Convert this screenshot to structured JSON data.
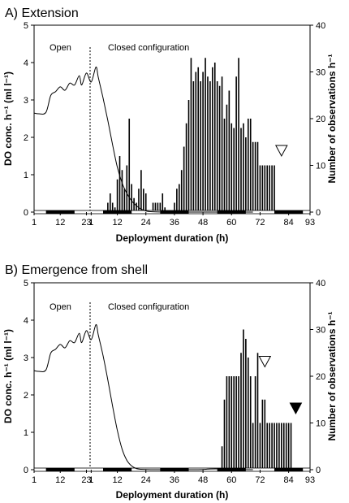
{
  "chart_data": [
    {
      "type": "bar",
      "panel": "A",
      "title": "Extension",
      "xlabel": "Deployment duration (h)",
      "ylabel_left": "DO conc. h⁻¹ (ml l⁻¹)",
      "ylabel_right": "Number of observations h⁻¹",
      "x_ticks": [
        "1",
        "12",
        "23",
        "1",
        "12",
        "24",
        "36",
        "48",
        "60",
        "72",
        "84",
        "93"
      ],
      "ylim_left": [
        0,
        5
      ],
      "y_ticks_left": [
        "0",
        "1",
        "2",
        "3",
        "4",
        "5"
      ],
      "ylim_right": [
        0,
        40
      ],
      "y_ticks_right": [
        "0",
        "10",
        "20",
        "30",
        "40"
      ],
      "phase_labels": [
        "Open",
        "Closed configuration"
      ],
      "do_curve": [
        [
          1,
          2.65
        ],
        [
          3,
          2.63
        ],
        [
          6,
          2.67
        ],
        [
          8,
          3.12
        ],
        [
          10,
          3.22
        ],
        [
          12,
          3.35
        ],
        [
          14,
          3.26
        ],
        [
          16,
          3.45
        ],
        [
          18,
          3.4
        ],
        [
          20,
          3.65
        ],
        [
          21,
          3.4
        ],
        [
          23,
          3.72
        ],
        [
          25,
          3.48
        ],
        [
          27,
          3.88
        ],
        [
          28,
          3.6
        ],
        [
          30,
          3.05
        ],
        [
          32,
          2.45
        ],
        [
          34,
          1.8
        ],
        [
          36,
          1.2
        ],
        [
          38,
          0.78
        ],
        [
          40,
          0.5
        ],
        [
          42,
          0.3
        ],
        [
          44,
          0.17
        ],
        [
          46,
          0.08
        ],
        [
          48,
          0.03
        ],
        [
          50,
          0.01
        ],
        [
          55,
          0
        ],
        [
          60,
          0
        ],
        [
          93,
          0
        ]
      ],
      "bars": [
        [
          32,
          2
        ],
        [
          33,
          4
        ],
        [
          34,
          2
        ],
        [
          35,
          1
        ],
        [
          36,
          7
        ],
        [
          37,
          12
        ],
        [
          38,
          9
        ],
        [
          39,
          5
        ],
        [
          40,
          10
        ],
        [
          41,
          20
        ],
        [
          42,
          6
        ],
        [
          43,
          3
        ],
        [
          44,
          2
        ],
        [
          45,
          5
        ],
        [
          46,
          9
        ],
        [
          47,
          5
        ],
        [
          48,
          4
        ],
        [
          49,
          0
        ],
        [
          50,
          0
        ],
        [
          51,
          2
        ],
        [
          52,
          2
        ],
        [
          53,
          2
        ],
        [
          54,
          2
        ],
        [
          55,
          4
        ],
        [
          56,
          1
        ],
        [
          57,
          0
        ],
        [
          58,
          0
        ],
        [
          59,
          0
        ],
        [
          60,
          2
        ],
        [
          61,
          5
        ],
        [
          62,
          6
        ],
        [
          63,
          9
        ],
        [
          64,
          14
        ],
        [
          65,
          19
        ],
        [
          66,
          24
        ],
        [
          67,
          33
        ],
        [
          68,
          28
        ],
        [
          69,
          30
        ],
        [
          70,
          31
        ],
        [
          71,
          28
        ],
        [
          72,
          30
        ],
        [
          73,
          33
        ],
        [
          74,
          29
        ],
        [
          75,
          28
        ],
        [
          76,
          31
        ],
        [
          77,
          32
        ],
        [
          78,
          28
        ],
        [
          79,
          27
        ],
        [
          80,
          29
        ],
        [
          81,
          20
        ],
        [
          82,
          23
        ],
        [
          83,
          26
        ],
        [
          84,
          19
        ],
        [
          85,
          18
        ],
        [
          86,
          29
        ],
        [
          87,
          33
        ],
        [
          88,
          18
        ],
        [
          89,
          19
        ],
        [
          90,
          16
        ],
        [
          91,
          20
        ],
        [
          92,
          20
        ],
        [
          93,
          15
        ],
        [
          94,
          15
        ],
        [
          95,
          15
        ],
        [
          96,
          10
        ],
        [
          97,
          10
        ],
        [
          98,
          10
        ],
        [
          99,
          10
        ],
        [
          100,
          10
        ],
        [
          101,
          10
        ],
        [
          102,
          10
        ]
      ],
      "markers": [
        {
          "at": 105,
          "level": 12,
          "style": "open"
        }
      ],
      "dark_periods": [
        [
          6,
          18
        ],
        [
          30,
          42
        ],
        [
          54,
          66
        ],
        [
          78,
          90
        ],
        [
          102,
          114
        ]
      ]
    },
    {
      "type": "bar",
      "panel": "B",
      "title": "Emergence from shell",
      "xlabel": "Deployment duration (h)",
      "ylabel_left": "DO conc. h⁻¹ (ml l⁻¹)",
      "ylabel_right": "Number of observations h⁻¹",
      "x_ticks": [
        "1",
        "12",
        "23",
        "1",
        "12",
        "24",
        "36",
        "48",
        "60",
        "72",
        "84",
        "93"
      ],
      "ylim_left": [
        0,
        5
      ],
      "y_ticks_left": [
        "0",
        "1",
        "2",
        "3",
        "4",
        "5"
      ],
      "ylim_right": [
        0,
        40
      ],
      "y_ticks_right": [
        "0",
        "10",
        "20",
        "30",
        "40"
      ],
      "phase_labels": [
        "Open",
        "Closed configuration"
      ],
      "do_curve": [
        [
          1,
          2.65
        ],
        [
          3,
          2.63
        ],
        [
          6,
          2.67
        ],
        [
          8,
          3.12
        ],
        [
          10,
          3.22
        ],
        [
          12,
          3.35
        ],
        [
          14,
          3.26
        ],
        [
          16,
          3.45
        ],
        [
          18,
          3.4
        ],
        [
          20,
          3.65
        ],
        [
          21,
          3.4
        ],
        [
          23,
          3.72
        ],
        [
          25,
          3.48
        ],
        [
          27,
          3.88
        ],
        [
          28,
          3.6
        ],
        [
          30,
          3.05
        ],
        [
          32,
          2.4
        ],
        [
          34,
          1.7
        ],
        [
          36,
          1.05
        ],
        [
          38,
          0.55
        ],
        [
          40,
          0.25
        ],
        [
          42,
          0.1
        ],
        [
          44,
          0.03
        ],
        [
          46,
          0.01
        ],
        [
          50,
          0
        ],
        [
          60,
          0
        ],
        [
          70,
          0
        ],
        [
          75,
          0.02
        ],
        [
          80,
          0.02
        ],
        [
          90,
          0
        ],
        [
          93,
          0
        ]
      ],
      "bars": [
        [
          80,
          5
        ],
        [
          81,
          15
        ],
        [
          82,
          20
        ],
        [
          83,
          20
        ],
        [
          84,
          20
        ],
        [
          85,
          20
        ],
        [
          86,
          20
        ],
        [
          87,
          20
        ],
        [
          88,
          25
        ],
        [
          89,
          30
        ],
        [
          90,
          28
        ],
        [
          91,
          24
        ],
        [
          92,
          20
        ],
        [
          93,
          10
        ],
        [
          94,
          20
        ],
        [
          95,
          25
        ],
        [
          96,
          10
        ],
        [
          97,
          15
        ],
        [
          98,
          15
        ],
        [
          99,
          10
        ],
        [
          100,
          10
        ],
        [
          101,
          10
        ],
        [
          102,
          10
        ],
        [
          103,
          10
        ],
        [
          104,
          10
        ],
        [
          105,
          10
        ],
        [
          106,
          10
        ],
        [
          107,
          10
        ],
        [
          108,
          10
        ],
        [
          109,
          10
        ]
      ],
      "markers": [
        {
          "at": 98,
          "level": 22,
          "style": "open"
        },
        {
          "at": 111,
          "level": 12,
          "style": "filled"
        }
      ],
      "dark_periods": [
        [
          6,
          18
        ],
        [
          30,
          42
        ],
        [
          54,
          66
        ],
        [
          78,
          90
        ],
        [
          102,
          114
        ]
      ]
    }
  ]
}
